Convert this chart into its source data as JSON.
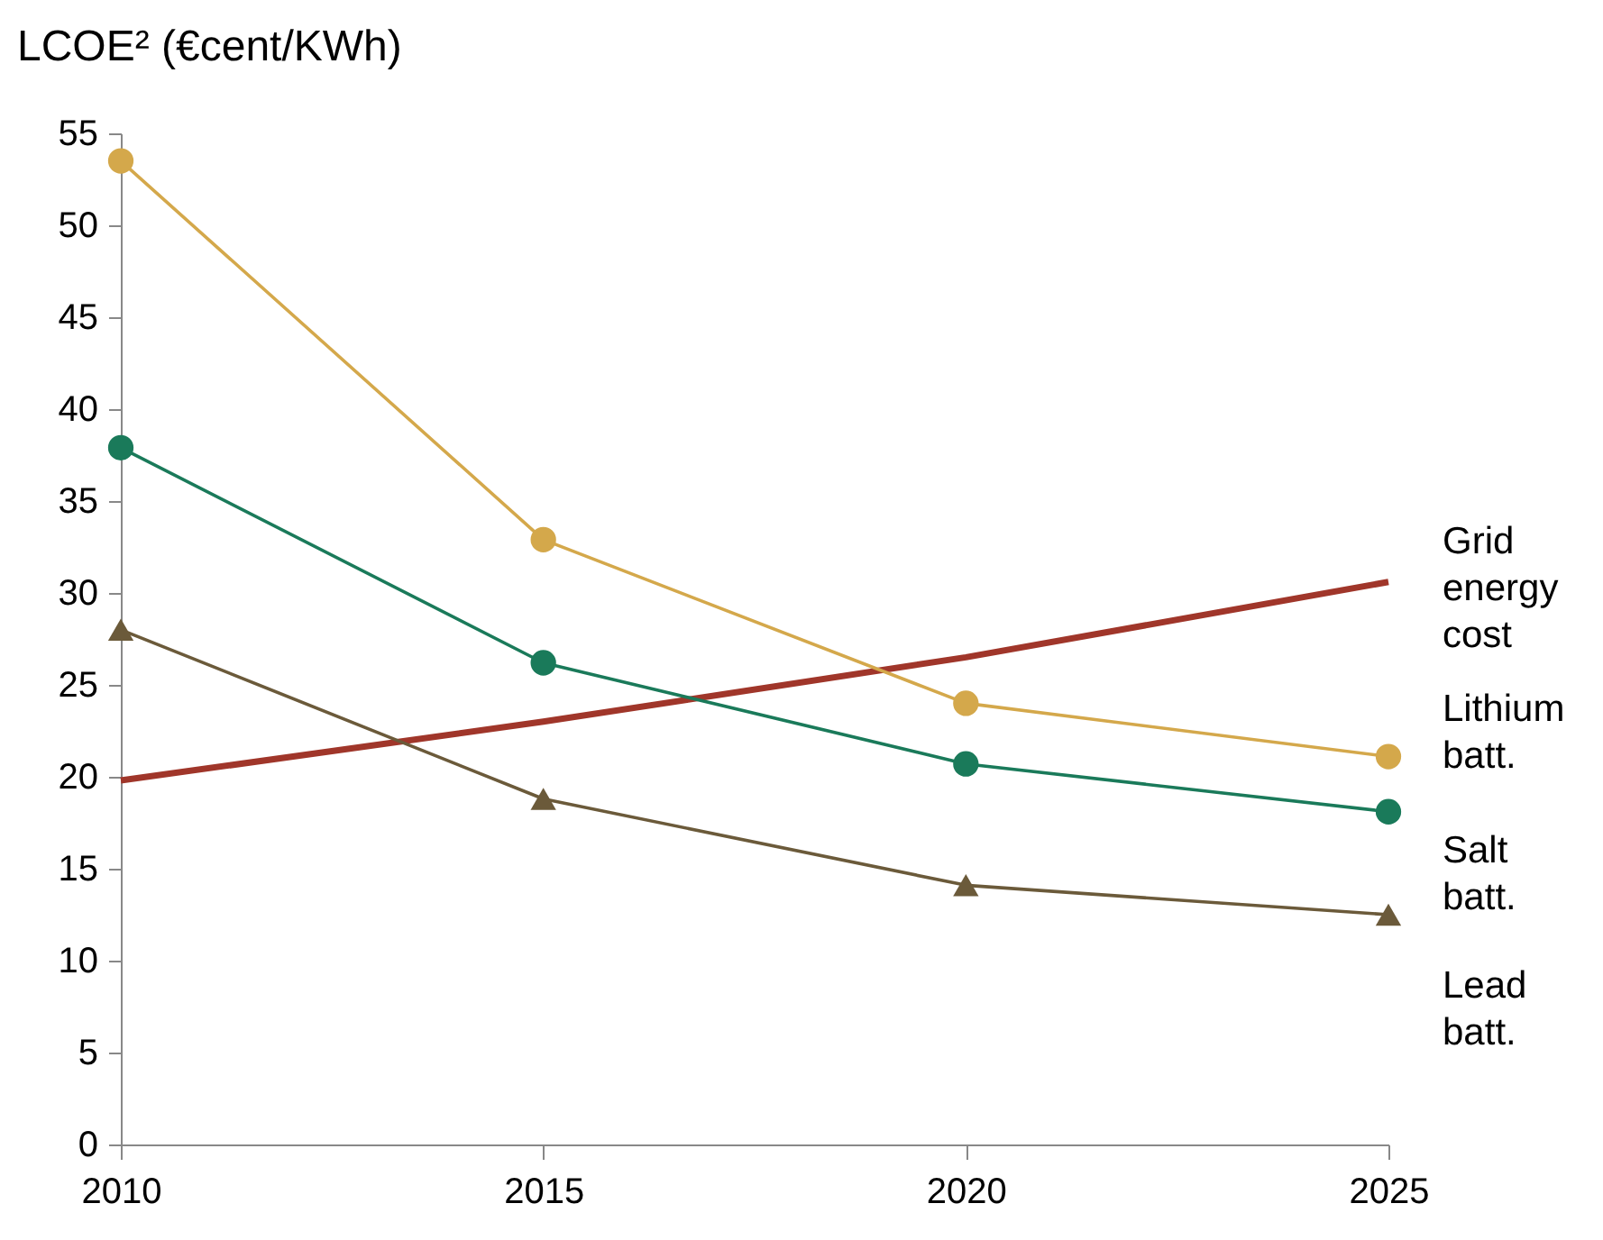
{
  "chart_data": {
    "type": "line",
    "ylabel": "LCOE² (€cent/KWh)",
    "x": [
      2010,
      2015,
      2020,
      2025
    ],
    "series": [
      {
        "name": "Grid energy cost",
        "color": "#a0362a",
        "values": [
          19.8,
          23.0,
          26.5,
          30.6
        ],
        "marker": "none"
      },
      {
        "name": "Lithium batt.",
        "color": "#d4a84b",
        "values": [
          53.5,
          32.9,
          24.0,
          21.1
        ],
        "marker": "circle"
      },
      {
        "name": "Salt batt.",
        "color": "#1a7a5a",
        "values": [
          37.9,
          26.2,
          20.7,
          18.1
        ],
        "marker": "circle"
      },
      {
        "name": "Lead batt.",
        "color": "#6b5a3a",
        "values": [
          28.0,
          18.8,
          14.1,
          12.5
        ],
        "marker": "triangle"
      }
    ],
    "xlim": [
      2010,
      2025
    ],
    "xticks": [
      2010,
      2015,
      2020,
      2025
    ],
    "ylim": [
      0,
      55
    ],
    "yticks": [
      0,
      5,
      10,
      15,
      20,
      25,
      30,
      35,
      40,
      45,
      50,
      55
    ],
    "grid": false,
    "legend": false,
    "line_style": "solid"
  }
}
